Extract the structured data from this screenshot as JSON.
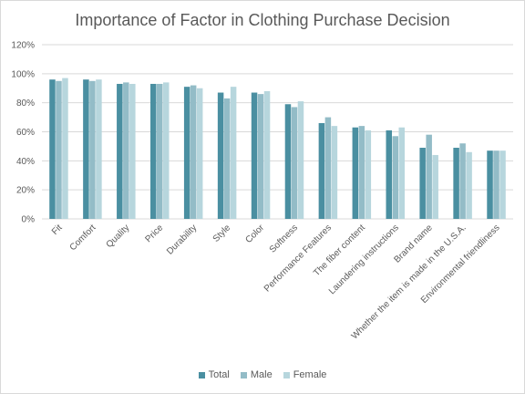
{
  "chart_data": {
    "type": "bar",
    "title": "Importance of Factor in Clothing Purchase Decision",
    "categories": [
      "Fit",
      "Comfort",
      "Quality",
      "Price",
      "Durability",
      "Style",
      "Color",
      "Softness",
      "Performance Features",
      "The fiber content",
      "Laundering instructions",
      "Brand name",
      "Whether the item is made in the U.S.A.",
      "Environmental friendliness"
    ],
    "series": [
      {
        "name": "Total",
        "color": "#4a8fa1",
        "values": [
          96,
          96,
          93,
          93,
          91,
          87,
          87,
          79,
          66,
          63,
          61,
          49,
          49,
          47
        ]
      },
      {
        "name": "Male",
        "color": "#93bcc7",
        "values": [
          95,
          95,
          94,
          93,
          92,
          83,
          86,
          77,
          70,
          64,
          57,
          58,
          52,
          47
        ]
      },
      {
        "name": "Female",
        "color": "#b7d6dd",
        "values": [
          97,
          96,
          93,
          94,
          90,
          91,
          88,
          81,
          64,
          61,
          63,
          44,
          46,
          47
        ]
      }
    ],
    "y_ticks": [
      "0%",
      "20%",
      "40%",
      "60%",
      "80%",
      "100%",
      "120%"
    ],
    "ylim": [
      0,
      120
    ],
    "grid": true,
    "legend_position": "bottom",
    "gridline_color": "#d9d9d9"
  }
}
